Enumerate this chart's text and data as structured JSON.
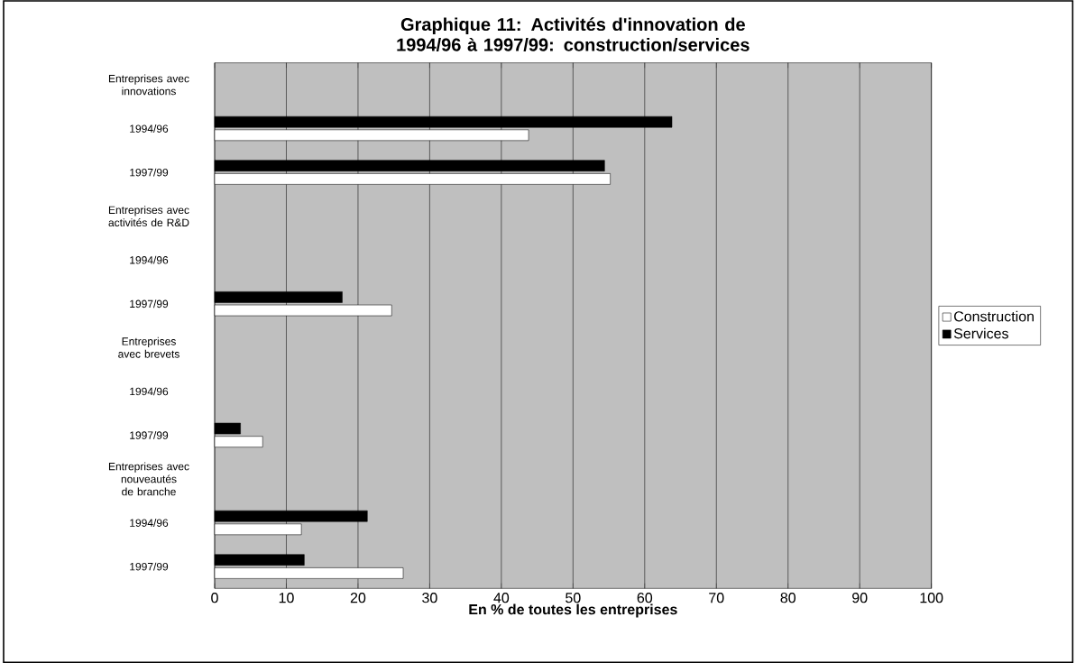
{
  "chart_data": {
    "type": "bar",
    "orientation": "horizontal",
    "title": "Graphique 11: Activités d'innovation de 1994/96 à 1997/99: construction/services",
    "xlabel": "En % de toutes les entreprises",
    "categories": [
      "Entreprises avec innovations",
      "1994/96",
      "1997/99",
      "Entreprises avec activités de R&D",
      "1994/96",
      "1997/99",
      "Entreprises avec brevets",
      "1994/96",
      "1997/99",
      "Entreprises avec nouveautés de branche",
      "1994/96",
      "1997/99"
    ],
    "series": [
      {
        "name": "Construction",
        "color": "#ffffff",
        "values": [
          null,
          43.8,
          55.2,
          null,
          null,
          24.7,
          null,
          null,
          6.7,
          null,
          12.1,
          26.3
        ]
      },
      {
        "name": "Services",
        "color": "#000000",
        "values": [
          null,
          63.8,
          54.4,
          null,
          null,
          17.8,
          null,
          null,
          3.6,
          null,
          21.3,
          12.5
        ]
      }
    ],
    "xlim": [
      0,
      100
    ],
    "xticks": [
      0,
      10,
      20,
      30,
      40,
      50,
      60,
      70,
      80,
      90,
      100
    ],
    "grid": "x",
    "legend": "right"
  }
}
